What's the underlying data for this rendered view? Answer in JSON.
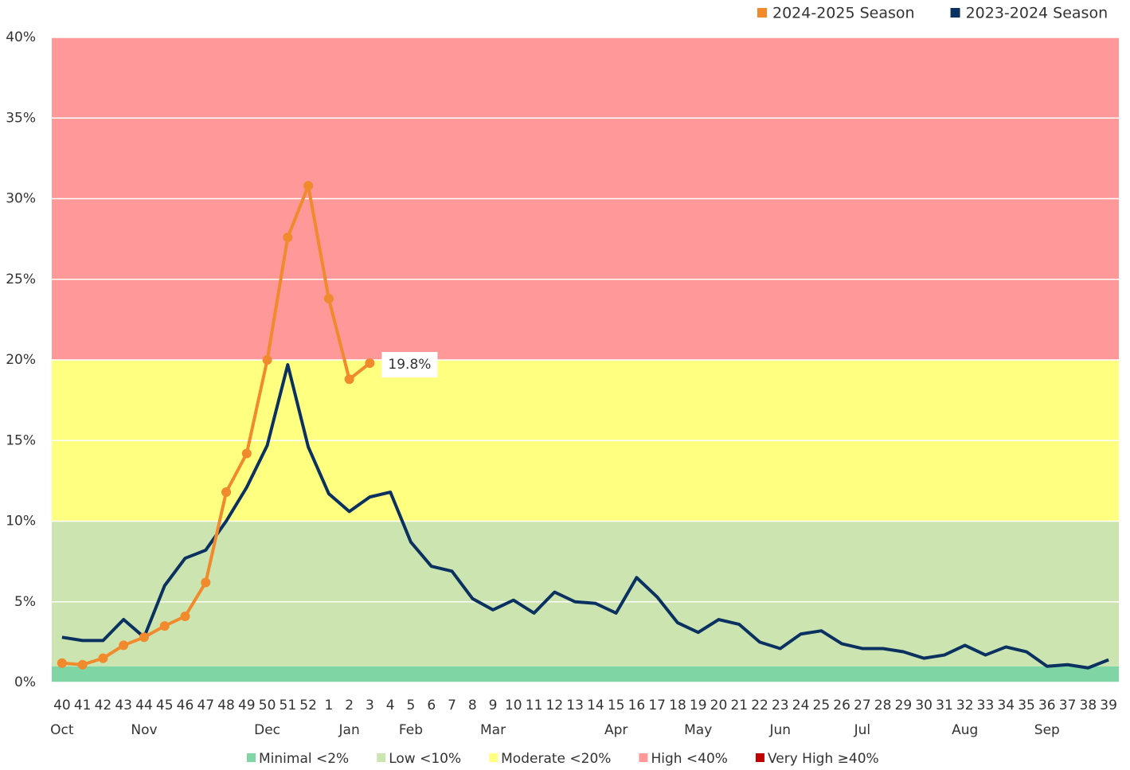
{
  "chart_data": {
    "type": "line",
    "categories": [
      "40",
      "41",
      "42",
      "43",
      "44",
      "45",
      "46",
      "47",
      "48",
      "49",
      "50",
      "51",
      "52",
      "1",
      "2",
      "3",
      "4",
      "5",
      "6",
      "7",
      "8",
      "9",
      "10",
      "11",
      "12",
      "13",
      "14",
      "15",
      "16",
      "17",
      "18",
      "19",
      "20",
      "21",
      "22",
      "23",
      "24",
      "25",
      "26",
      "27",
      "28",
      "29",
      "30",
      "31",
      "32",
      "33",
      "34",
      "35",
      "36",
      "37",
      "38",
      "39"
    ],
    "months": [
      "Oct",
      null,
      null,
      null,
      "Nov",
      null,
      null,
      null,
      null,
      null,
      "Dec",
      null,
      null,
      null,
      "Jan",
      null,
      null,
      "Feb",
      null,
      null,
      null,
      "Mar",
      null,
      null,
      null,
      null,
      null,
      "Apr",
      null,
      null,
      null,
      "May",
      null,
      null,
      null,
      "Jun",
      null,
      null,
      null,
      "Jul",
      null,
      null,
      null,
      null,
      "Aug",
      null,
      null,
      null,
      "Sep",
      null,
      null,
      null
    ],
    "series": [
      {
        "name": "2024-2025 Season",
        "color": "#f08a2c",
        "markers": true,
        "values": [
          1.2,
          1.1,
          1.5,
          2.3,
          2.8,
          3.5,
          4.1,
          6.2,
          11.8,
          14.2,
          20.0,
          27.6,
          30.8,
          23.8,
          18.8,
          19.8,
          null,
          null,
          null,
          null,
          null,
          null,
          null,
          null,
          null,
          null,
          null,
          null,
          null,
          null,
          null,
          null,
          null,
          null,
          null,
          null,
          null,
          null,
          null,
          null,
          null,
          null,
          null,
          null,
          null,
          null,
          null,
          null,
          null,
          null,
          null,
          null
        ],
        "value_labels": [
          null,
          null,
          null,
          null,
          null,
          null,
          null,
          null,
          null,
          null,
          null,
          null,
          null,
          null,
          null,
          "19.8%",
          null,
          null,
          null,
          null,
          null,
          null,
          null,
          null,
          null,
          null,
          null,
          null,
          null,
          null,
          null,
          null,
          null,
          null,
          null,
          null,
          null,
          null,
          null,
          null,
          null,
          null,
          null,
          null,
          null,
          null,
          null,
          null,
          null,
          null,
          null,
          null
        ]
      },
      {
        "name": "2023-2024 Season",
        "color": "#0b3161",
        "markers": false,
        "values": [
          2.8,
          2.6,
          2.6,
          3.9,
          2.8,
          6.0,
          7.7,
          8.2,
          10.0,
          12.1,
          14.7,
          19.7,
          14.6,
          11.7,
          10.6,
          11.5,
          11.8,
          8.7,
          7.2,
          6.9,
          5.2,
          4.5,
          5.1,
          4.3,
          5.6,
          5.0,
          4.9,
          4.3,
          6.5,
          5.3,
          3.7,
          3.1,
          3.9,
          3.6,
          2.5,
          2.1,
          3.0,
          3.2,
          2.4,
          2.1,
          2.1,
          1.9,
          1.5,
          1.7,
          2.3,
          1.7,
          2.2,
          1.9,
          1.0,
          1.1,
          0.9,
          1.4
        ]
      }
    ],
    "zones": [
      {
        "name": "Minimal <2%",
        "color": "#7fd6a4",
        "from": 0,
        "to": 1
      },
      {
        "name": "Low <10%",
        "color": "#cce5b0",
        "from": 1,
        "to": 10
      },
      {
        "name": "Moderate <20%",
        "color": "#ffff80",
        "from": 10,
        "to": 20
      },
      {
        "name": "High <40%",
        "color": "#ff9999",
        "from": 20,
        "to": 40
      },
      {
        "name": "Very High ≥40%",
        "color": "#c00000",
        "from": 40,
        "to": 40
      }
    ],
    "ylim": [
      0,
      40
    ],
    "yticks": [
      {
        "value": 0,
        "label": "0%"
      },
      {
        "value": 5,
        "label": "5%"
      },
      {
        "value": 10,
        "label": "10%"
      },
      {
        "value": 15,
        "label": "15%"
      },
      {
        "value": 20,
        "label": "20%"
      },
      {
        "value": 25,
        "label": "25%"
      },
      {
        "value": 30,
        "label": "30%"
      },
      {
        "value": 35,
        "label": "35%"
      },
      {
        "value": 40,
        "label": "40%"
      }
    ],
    "grid": true
  }
}
